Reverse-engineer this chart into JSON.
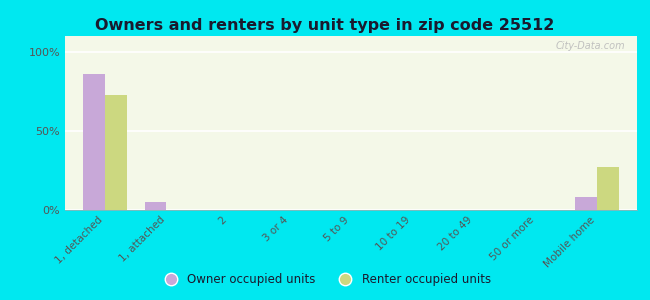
{
  "title": "Owners and renters by unit type in zip code 25512",
  "categories": [
    "1, detached",
    "1, attached",
    "2",
    "3 or 4",
    "5 to 9",
    "10 to 19",
    "20 to 49",
    "50 or more",
    "Mobile home"
  ],
  "owner_values": [
    86,
    5,
    0,
    0,
    0,
    0,
    0,
    0,
    8
  ],
  "renter_values": [
    73,
    0,
    0,
    0,
    0,
    0,
    0,
    0,
    27
  ],
  "owner_color": "#c8a8d8",
  "renter_color": "#ccd880",
  "background_color": "#00e8f0",
  "plot_bg": "#f4f8e8",
  "yticks": [
    0,
    50,
    100
  ],
  "ylim": [
    0,
    110
  ],
  "bar_width": 0.35,
  "watermark": "City-Data.com",
  "legend_owner": "Owner occupied units",
  "legend_renter": "Renter occupied units",
  "title_color": "#1a1a2e",
  "tick_color": "#555555"
}
